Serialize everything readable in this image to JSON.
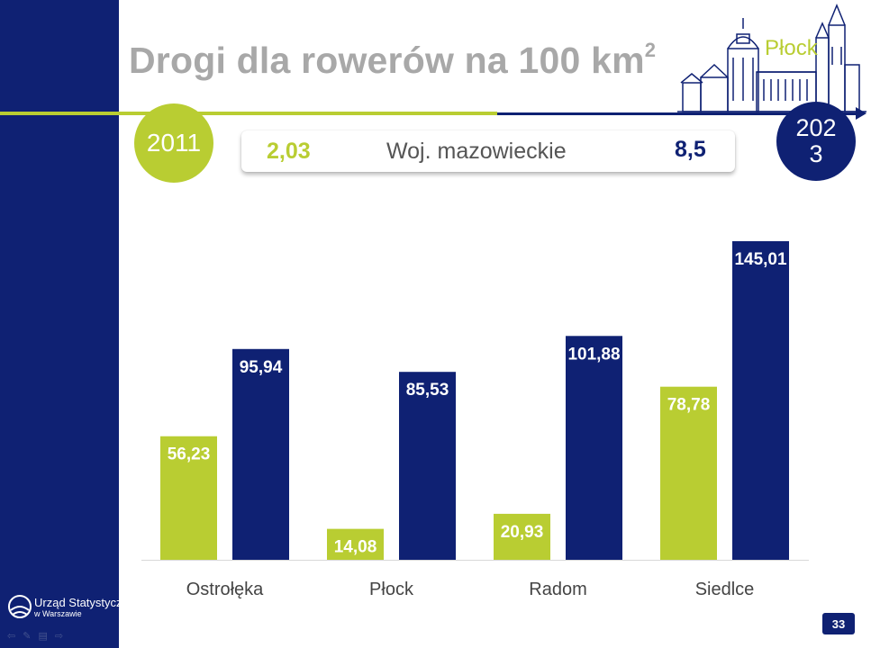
{
  "slide": {
    "title": "Drogi dla rowerów na 100 km",
    "title_superscript": "2",
    "city": "Płock",
    "year_start": "2011",
    "year_end": "2023",
    "page_number": "33"
  },
  "voivodeship": {
    "label": "Woj. mazowieckie",
    "value_start": "2,03",
    "value_end": "8,5"
  },
  "logo": {
    "line1": "Urząd Statystyczny",
    "line2": "w Warszawie"
  },
  "colors": {
    "navy": "#0f2173",
    "green": "#b9cd32",
    "title_gray": "#a8a8a8"
  },
  "icons": [
    "back-arrow-icon",
    "pen-icon",
    "menu-icon",
    "forward-arrow-icon"
  ],
  "chart_data": {
    "type": "bar",
    "categories": [
      "Ostrołęka",
      "Płock",
      "Radom",
      "Siedlce"
    ],
    "series": [
      {
        "values": [
          56.23,
          14.08,
          20.93,
          78.78
        ],
        "labels": [
          "56,23",
          "14,08",
          "20,93",
          "78,78"
        ],
        "color": "#b9cd32"
      },
      {
        "values": [
          95.94,
          85.53,
          101.88,
          145.01
        ],
        "labels": [
          "95,94",
          "85,53",
          "101,88",
          "145,01"
        ],
        "color": "#0f2173"
      }
    ],
    "ylim": [
      0,
      145.01
    ],
    "grid": false,
    "legend": "none"
  }
}
